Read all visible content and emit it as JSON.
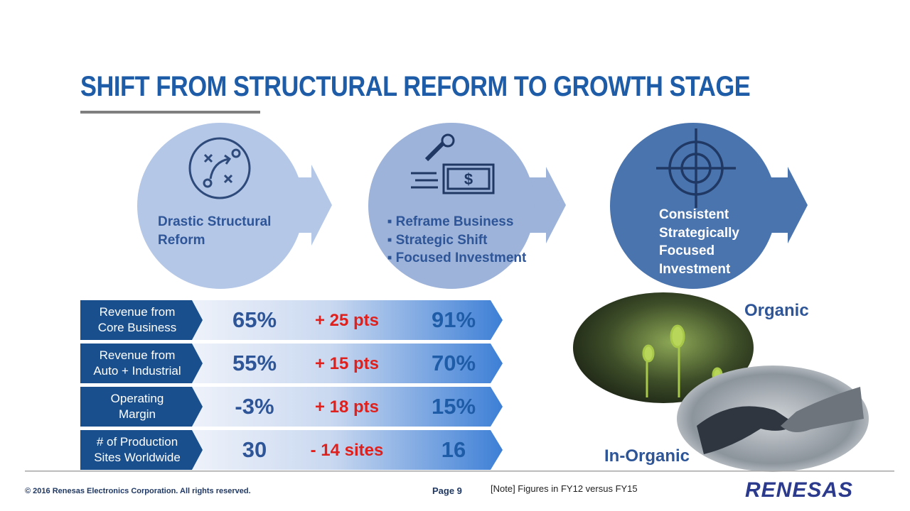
{
  "title": "SHIFT FROM STRUCTURAL REFORM TO GROWTH STAGE",
  "stages": [
    {
      "lines": [
        "Drastic Structural",
        "Reform"
      ]
    },
    {
      "items": [
        "Reframe Business",
        "Strategic Shift",
        "Focused Investment"
      ]
    },
    {
      "lines": [
        "Consistent",
        "Strategically",
        "Focused",
        "Investment"
      ]
    }
  ],
  "metrics": [
    {
      "label_lines": [
        "Revenue from",
        "Core Business"
      ],
      "before": "65%",
      "change": "+ 25 pts",
      "after": "91%"
    },
    {
      "label_lines": [
        "Revenue from",
        "Auto + Industrial"
      ],
      "before": "55%",
      "change": "+ 15 pts",
      "after": "70%"
    },
    {
      "label_lines": [
        "Operating",
        "Margin"
      ],
      "before": "-3%",
      "change": "+ 18 pts",
      "after": "15%"
    },
    {
      "label_lines": [
        "# of Production",
        "Sites Worldwide"
      ],
      "before": "30",
      "change": "- 14 sites",
      "after": "16"
    }
  ],
  "images": {
    "top_label": "Organic",
    "bottom_label": "In-Organic"
  },
  "footer": {
    "copyright": "© 2016 Renesas Electronics Corporation. All rights reserved.",
    "page": "Page 9",
    "note": "[Note] Figures in FY12 versus FY15",
    "logo": "RENESAS"
  }
}
